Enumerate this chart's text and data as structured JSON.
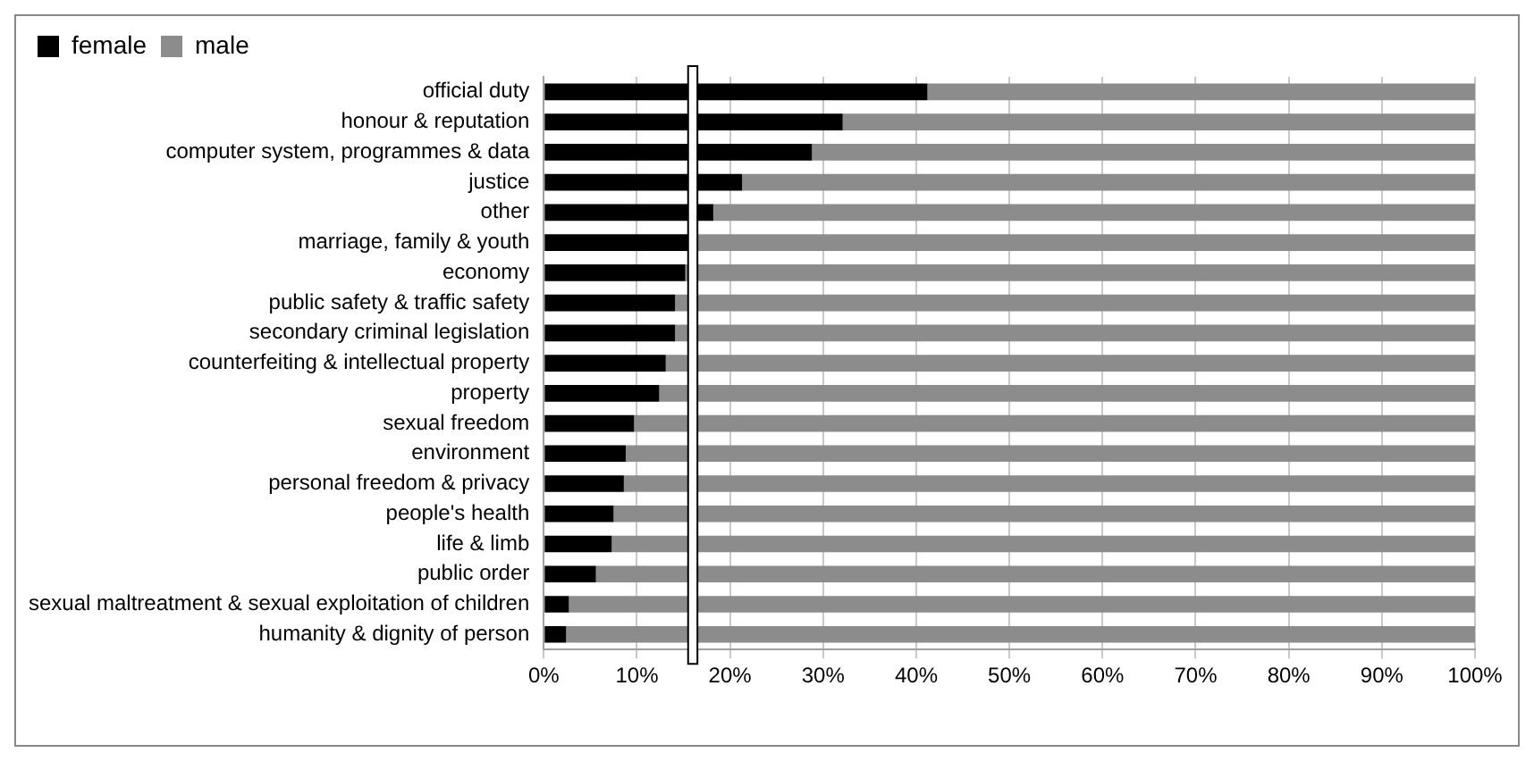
{
  "chart_data": {
    "type": "bar",
    "orientation": "horizontal",
    "stacked": true,
    "categories": [
      "official duty",
      "honour & reputation",
      "computer system, programmes & data",
      "justice",
      "other",
      "marriage, family & youth",
      "economy",
      "public safety & traffic safety",
      "secondary criminal legislation",
      "counterfeiting & intellectual property",
      "property",
      "sexual freedom",
      "environment",
      "personal freedom & privacy",
      "people's health",
      "life & limb",
      "public order",
      "sexual maltreatment & sexual exploitation of children",
      "humanity & dignity of person"
    ],
    "series": [
      {
        "name": "female",
        "color": "#000000",
        "values": [
          41.2,
          32.1,
          28.8,
          21.3,
          18.2,
          15.6,
          15.2,
          14.1,
          14.1,
          13.1,
          12.4,
          9.7,
          8.8,
          8.6,
          7.5,
          7.3,
          5.6,
          2.7,
          2.4
        ]
      },
      {
        "name": "male",
        "color": "#8c8c8c",
        "values": [
          58.8,
          67.9,
          71.2,
          78.7,
          81.8,
          84.4,
          84.8,
          85.9,
          85.9,
          86.9,
          87.6,
          90.3,
          91.2,
          91.4,
          92.5,
          92.7,
          94.4,
          97.3,
          97.6
        ]
      }
    ],
    "xlim": [
      0,
      100
    ],
    "xticks": [
      {
        "value": 0,
        "label": "0%"
      },
      {
        "value": 10,
        "label": "10%"
      },
      {
        "value": 20,
        "label": "20%"
      },
      {
        "value": 30,
        "label": "30%"
      },
      {
        "value": 40,
        "label": "40%"
      },
      {
        "value": 50,
        "label": "50%"
      },
      {
        "value": 60,
        "label": "60%"
      },
      {
        "value": 70,
        "label": "70%"
      },
      {
        "value": 80,
        "label": "80%"
      },
      {
        "value": 90,
        "label": "90%"
      },
      {
        "value": 100,
        "label": "100%"
      }
    ],
    "bands": [
      {
        "axis": "x",
        "from": 15.5,
        "to": 16.5,
        "label": null,
        "color": "#ffffff"
      }
    ],
    "grid": "x",
    "legend": "top left"
  }
}
